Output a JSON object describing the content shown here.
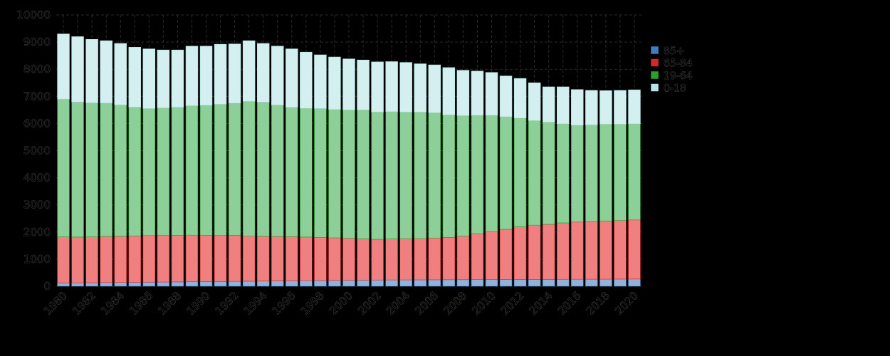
{
  "chart_data": {
    "type": "bar",
    "stacked": true,
    "categories": [
      "1980",
      "1981",
      "1982",
      "1983",
      "1984",
      "1985",
      "1986",
      "1987",
      "1988",
      "1989",
      "1990",
      "1991",
      "1992",
      "1993",
      "1994",
      "1995",
      "1996",
      "1997",
      "1998",
      "1999",
      "2000",
      "2001",
      "2002",
      "2003",
      "2004",
      "2005",
      "2006",
      "2007",
      "2008",
      "2009",
      "2010",
      "2011",
      "2012",
      "2013",
      "2014",
      "2015",
      "2016",
      "2017",
      "2018",
      "2019",
      "2020"
    ],
    "x_tick_labels": [
      "1980",
      "1982",
      "1984",
      "1986",
      "1988",
      "1990",
      "1992",
      "1994",
      "1996",
      "1998",
      "2000",
      "2002",
      "2004",
      "2006",
      "2008",
      "2010",
      "2012",
      "2014",
      "2016",
      "2018",
      "2020"
    ],
    "ylim": [
      0,
      10000
    ],
    "y_ticks": [
      0,
      1000,
      2000,
      3000,
      4000,
      5000,
      6000,
      7000,
      8000,
      9000,
      10000
    ],
    "grid": true,
    "legend_position": "top-right",
    "series": [
      {
        "name": "85+",
        "color": "#3b7fc4",
        "fill": "#8fb3dc",
        "values": [
          120,
          125,
          130,
          135,
          140,
          145,
          150,
          155,
          160,
          165,
          170,
          175,
          180,
          185,
          190,
          195,
          200,
          205,
          210,
          215,
          220,
          225,
          230,
          232,
          234,
          236,
          238,
          240,
          242,
          244,
          246,
          248,
          250,
          252,
          254,
          256,
          258,
          260,
          262,
          264,
          266
        ]
      },
      {
        "name": "65-84",
        "color": "#d62728",
        "fill": "#f08080",
        "values": [
          1700,
          1690,
          1690,
          1700,
          1700,
          1710,
          1720,
          1720,
          1720,
          1720,
          1710,
          1700,
          1700,
          1660,
          1650,
          1640,
          1630,
          1610,
          1590,
          1570,
          1550,
          1520,
          1500,
          1510,
          1520,
          1520,
          1540,
          1560,
          1600,
          1690,
          1770,
          1850,
          1940,
          2000,
          2030,
          2080,
          2110,
          2120,
          2140,
          2160,
          2180
        ]
      },
      {
        "name": "19-64",
        "color": "#2ca02c",
        "fill": "#8ccf98",
        "values": [
          5080,
          4980,
          4940,
          4920,
          4850,
          4750,
          4680,
          4700,
          4720,
          4770,
          4790,
          4835,
          4870,
          4975,
          4950,
          4845,
          4770,
          4745,
          4750,
          4735,
          4730,
          4755,
          4690,
          4698,
          4666,
          4664,
          4622,
          4520,
          4448,
          4366,
          4284,
          4152,
          4010,
          3858,
          3766,
          3654,
          3572,
          3570,
          3578,
          3556,
          3544
        ]
      },
      {
        "name": "0-18",
        "color": "#b6e3e4",
        "fill": "#d3eff0",
        "values": [
          2400,
          2405,
          2340,
          2295,
          2260,
          2205,
          2200,
          2135,
          2110,
          2195,
          2180,
          2210,
          2180,
          2230,
          2160,
          2170,
          2150,
          2070,
          1980,
          1930,
          1880,
          1840,
          1850,
          1840,
          1830,
          1780,
          1760,
          1740,
          1670,
          1630,
          1580,
          1500,
          1460,
          1390,
          1300,
          1360,
          1310,
          1270,
          1230,
          1240,
          1250
        ]
      }
    ]
  }
}
